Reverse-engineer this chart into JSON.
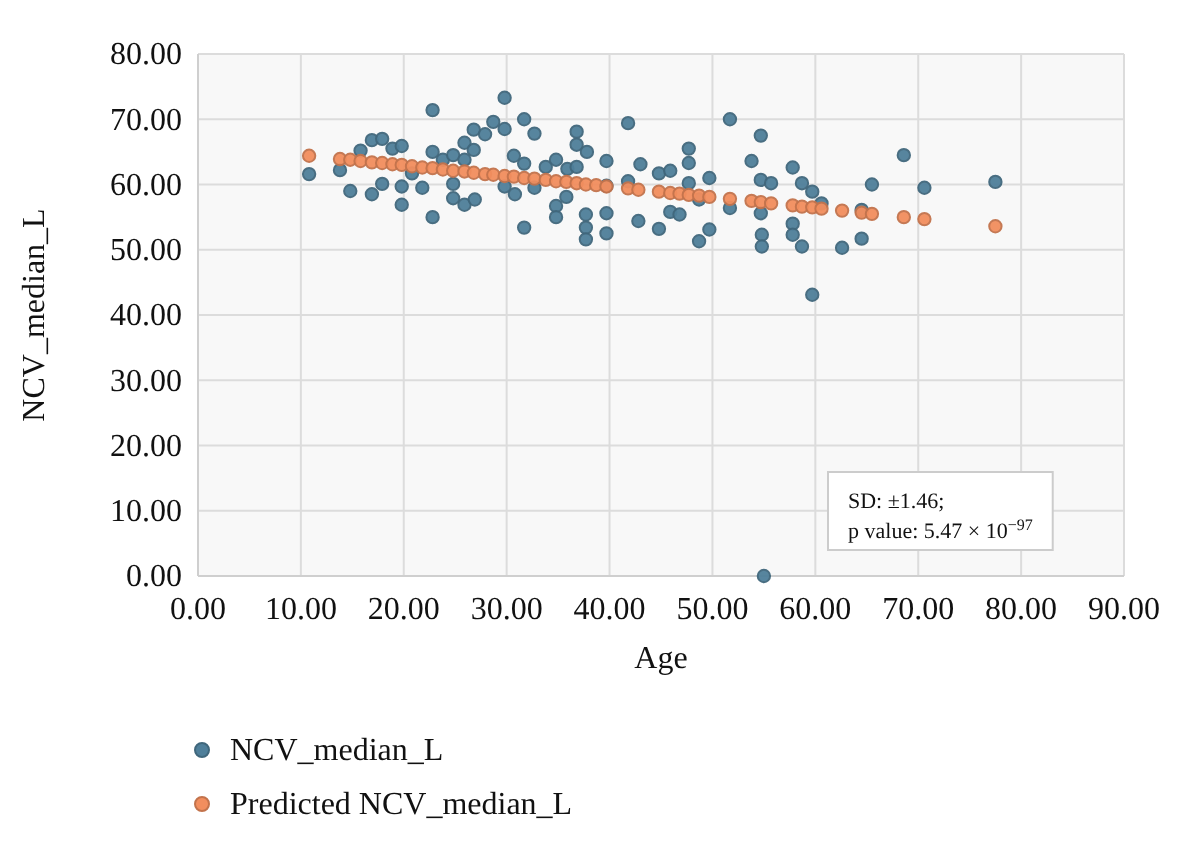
{
  "chart_data": {
    "type": "scatter",
    "xlabel": "Age",
    "ylabel": "NCV_median_L",
    "xlim": [
      0,
      90
    ],
    "ylim": [
      0,
      80
    ],
    "xticks": [
      {
        "value": 0,
        "label": "0.00"
      },
      {
        "value": 10,
        "label": "10.00"
      },
      {
        "value": 20,
        "label": "20.00"
      },
      {
        "value": 30,
        "label": "30.00"
      },
      {
        "value": 40,
        "label": "40.00"
      },
      {
        "value": 50,
        "label": "50.00"
      },
      {
        "value": 60,
        "label": "60.00"
      },
      {
        "value": 70,
        "label": "70.00"
      },
      {
        "value": 80,
        "label": "80.00"
      },
      {
        "value": 90,
        "label": "90.00"
      }
    ],
    "yticks": [
      {
        "value": 0,
        "label": "0.00"
      },
      {
        "value": 10,
        "label": "10.00"
      },
      {
        "value": 20,
        "label": "20.00"
      },
      {
        "value": 30,
        "label": "30.00"
      },
      {
        "value": 40,
        "label": "40.00"
      },
      {
        "value": 50,
        "label": "50.00"
      },
      {
        "value": 60,
        "label": "60.00"
      },
      {
        "value": 70,
        "label": "70.00"
      },
      {
        "value": 80,
        "label": "80.00"
      }
    ],
    "grid": true,
    "legend": "bottom",
    "marker": "circle",
    "annotations": [
      "SD: ±1.46;",
      "p value: 5.47 × 10$^{−97}$"
    ],
    "series": [
      {
        "name": "NCV_median_L",
        "color": "#4f7f9a",
        "x": [
          10.8,
          13.8,
          14.8,
          15.8,
          16.9,
          16.9,
          17.9,
          17.9,
          18.9,
          19.8,
          19.8,
          19.8,
          20.8,
          21.8,
          22.8,
          22.8,
          22.8,
          23.8,
          24.8,
          24.8,
          24.8,
          25.9,
          25.9,
          25.9,
          26.8,
          26.8,
          26.9,
          27.9,
          28.7,
          29.8,
          29.8,
          29.8,
          30.7,
          30.8,
          31.7,
          31.7,
          31.7,
          32.7,
          32.7,
          33.8,
          34.8,
          34.8,
          34.8,
          35.8,
          35.9,
          36.8,
          36.8,
          36.8,
          37.7,
          37.7,
          37.7,
          37.8,
          39.7,
          39.7,
          39.7,
          39.7,
          41.8,
          41.8,
          43.0,
          42.8,
          44.8,
          44.8,
          45.9,
          45.9,
          46.8,
          47.7,
          47.7,
          47.7,
          48.7,
          48.7,
          49.7,
          49.7,
          51.7,
          51.7,
          53.8,
          54.7,
          54.7,
          54.7,
          54.8,
          54.8,
          55.0,
          55.7,
          57.8,
          57.8,
          57.8,
          58.7,
          58.7,
          59.7,
          59.7,
          60.6,
          62.6,
          64.5,
          64.5,
          65.5,
          68.6,
          70.6,
          77.5
        ],
        "values": [
          61.6,
          62.2,
          59.0,
          65.2,
          58.5,
          66.8,
          60.1,
          67.0,
          65.5,
          65.9,
          59.7,
          56.9,
          61.7,
          59.5,
          71.4,
          65.0,
          55.0,
          63.8,
          64.5,
          60.1,
          57.9,
          66.4,
          63.8,
          56.9,
          68.4,
          65.3,
          57.7,
          67.7,
          69.6,
          73.3,
          68.5,
          59.7,
          64.4,
          58.5,
          70.0,
          63.2,
          53.4,
          67.8,
          59.5,
          62.7,
          63.8,
          56.7,
          55.0,
          58.1,
          62.4,
          68.1,
          66.1,
          62.7,
          55.4,
          53.4,
          51.6,
          65.0,
          63.6,
          55.6,
          52.5,
          59.8,
          69.4,
          60.5,
          63.1,
          54.4,
          61.7,
          53.2,
          62.1,
          55.8,
          55.4,
          65.5,
          63.3,
          60.2,
          57.7,
          51.3,
          61.0,
          53.1,
          70.0,
          56.4,
          63.6,
          67.5,
          60.7,
          55.6,
          52.3,
          50.5,
          0,
          60.2,
          62.6,
          54.0,
          52.3,
          60.2,
          50.5,
          58.9,
          43.1,
          57.1,
          50.3,
          56.1,
          51.7,
          60.0,
          64.5,
          59.5,
          60.4
        ]
      },
      {
        "name": "Predicted NCV_median_L",
        "color": "#f28e5e",
        "x": [
          10.8,
          13.8,
          14.8,
          15.8,
          16.9,
          17.9,
          18.9,
          19.8,
          20.8,
          21.8,
          22.8,
          23.8,
          24.8,
          25.9,
          26.8,
          27.9,
          28.7,
          29.8,
          30.7,
          31.7,
          32.7,
          33.8,
          34.8,
          35.8,
          36.8,
          37.7,
          38.7,
          39.7,
          41.8,
          42.8,
          44.8,
          45.9,
          46.8,
          47.7,
          48.7,
          49.7,
          51.7,
          53.8,
          54.7,
          55.7,
          57.8,
          58.7,
          59.7,
          60.6,
          62.6,
          64.5,
          65.5,
          68.6,
          70.6,
          77.5
        ],
        "values": [
          64.4,
          63.9,
          63.8,
          63.6,
          63.4,
          63.3,
          63.1,
          63.0,
          62.8,
          62.6,
          62.5,
          62.3,
          62.1,
          62.0,
          61.8,
          61.6,
          61.5,
          61.3,
          61.2,
          61.0,
          60.9,
          60.7,
          60.5,
          60.4,
          60.2,
          60.0,
          59.9,
          59.7,
          59.4,
          59.2,
          58.9,
          58.7,
          58.6,
          58.4,
          58.3,
          58.1,
          57.8,
          57.5,
          57.3,
          57.1,
          56.8,
          56.6,
          56.5,
          56.3,
          56.0,
          55.7,
          55.5,
          55.0,
          54.7,
          53.6
        ]
      }
    ]
  }
}
